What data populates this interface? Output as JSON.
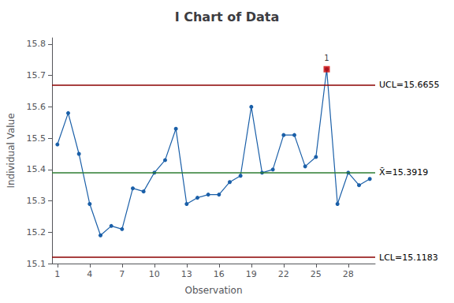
{
  "chart_data": {
    "type": "line",
    "title": "I Chart of Data",
    "xlabel": "Observation",
    "ylabel": "Individual Value",
    "x": [
      1,
      2,
      3,
      4,
      5,
      6,
      7,
      8,
      9,
      10,
      11,
      12,
      13,
      14,
      15,
      16,
      17,
      18,
      19,
      20,
      21,
      22,
      23,
      24,
      25,
      26,
      27,
      28,
      29,
      30
    ],
    "values": [
      15.48,
      15.58,
      15.45,
      15.29,
      15.19,
      15.22,
      15.21,
      15.34,
      15.33,
      15.39,
      15.43,
      15.53,
      15.29,
      15.31,
      15.32,
      15.32,
      15.36,
      15.38,
      15.6,
      15.39,
      15.4,
      15.51,
      15.51,
      15.41,
      15.44,
      15.72,
      15.29,
      15.39,
      15.35,
      15.37
    ],
    "color": "#1a5fa8",
    "marker": "circle",
    "xlim": [
      0.5,
      30.5
    ],
    "xticks": [
      1,
      4,
      7,
      10,
      13,
      16,
      19,
      22,
      25,
      28
    ],
    "ylim": [
      15.1,
      15.82
    ],
    "yticks": [
      15.1,
      15.2,
      15.3,
      15.4,
      15.5,
      15.6,
      15.7,
      15.8
    ],
    "grid": false,
    "hlines": [
      {
        "value": 15.6655,
        "label": "UCL=15.6655",
        "color": "#8b0000"
      },
      {
        "value": 15.1183,
        "label": "LCL=15.1183",
        "color": "#8b0000"
      },
      {
        "value": 15.3919,
        "label": "X̄=15.3919",
        "color": "#2e7d32"
      }
    ],
    "annotations": [
      {
        "x": 26,
        "y": 15.72,
        "text": "1",
        "color": "#cc0000",
        "marker": "square"
      }
    ]
  }
}
